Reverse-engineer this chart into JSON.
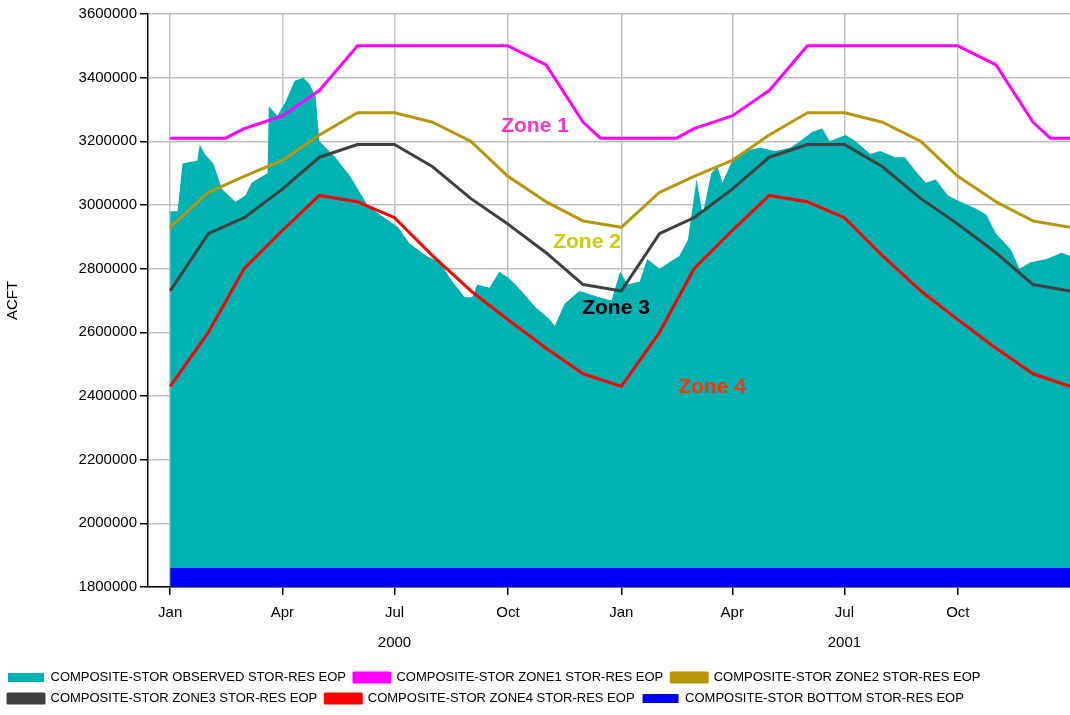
{
  "chart_data": {
    "type": "line",
    "ylabel": "ACFT",
    "xlim": [
      "1999-12-14",
      "2001-12-31"
    ],
    "xticks": [
      {
        "value": "2000-01-01",
        "label": "Jan"
      },
      {
        "value": "2000-04-01",
        "label": "Apr"
      },
      {
        "value": "2000-07-01",
        "label": "Jul\n2000"
      },
      {
        "value": "2000-10-01",
        "label": "Oct"
      },
      {
        "value": "2001-01-01",
        "label": "Jan"
      },
      {
        "value": "2001-04-01",
        "label": "Apr"
      },
      {
        "value": "2001-07-01",
        "label": "Jul\n2001"
      },
      {
        "value": "2001-10-01",
        "label": "Oct"
      }
    ],
    "ylim": [
      1800000,
      3600000
    ],
    "yticks": [
      1800000,
      2000000,
      2200000,
      2400000,
      2600000,
      2800000,
      3000000,
      3200000,
      3400000,
      3600000
    ],
    "grid": true,
    "legend": "bottom",
    "annotations": [
      "Zone 1",
      "Zone 2",
      "Zone 3",
      "Zone 4"
    ],
    "series": [
      {
        "name": "COMPOSITE-STOR OBSERVED STOR-RES EOP",
        "type": "area",
        "color": "#00b2b2",
        "x": [
          "2000-01-01",
          "2000-01-07",
          "2000-01-11",
          "2000-01-23",
          "2000-01-25",
          "2000-01-29",
          "2000-02-05",
          "2000-02-12",
          "2000-02-23",
          "2000-03-02",
          "2000-03-07",
          "2000-03-20",
          "2000-03-21",
          "2000-03-28",
          "2000-04-03",
          "2000-04-11",
          "2000-04-18",
          "2000-04-23",
          "2000-04-28",
          "2000-05-01",
          "2000-05-14",
          "2000-05-26",
          "2000-06-09",
          "2000-06-19",
          "2000-07-04",
          "2000-07-13",
          "2000-07-27",
          "2000-08-07",
          "2000-08-15",
          "2000-08-27",
          "2000-09-02",
          "2000-09-06",
          "2000-09-16",
          "2000-09-24",
          "2000-10-02",
          "2000-10-12",
          "2000-10-23",
          "2000-11-04",
          "2000-11-08",
          "2000-11-16",
          "2000-11-28",
          "2000-12-14",
          "2000-12-24",
          "2000-12-31",
          "2001-01-06",
          "2001-01-16",
          "2001-01-22",
          "2001-02-01",
          "2001-02-09",
          "2001-02-17",
          "2001-02-24",
          "2001-03-03",
          "2001-03-08",
          "2001-03-15",
          "2001-03-20",
          "2001-03-24",
          "2001-04-01",
          "2001-04-11",
          "2001-04-23",
          "2001-05-06",
          "2001-05-18",
          "2001-05-26",
          "2001-06-05",
          "2001-06-13",
          "2001-06-19",
          "2001-07-02",
          "2001-07-10",
          "2001-07-22",
          "2001-07-30",
          "2001-08-11",
          "2001-08-19",
          "2001-08-27",
          "2001-09-05",
          "2001-09-13",
          "2001-09-23",
          "2001-10-03",
          "2001-10-15",
          "2001-10-24",
          "2001-11-01",
          "2001-11-13",
          "2001-11-20",
          "2001-11-29",
          "2001-12-12",
          "2001-12-24",
          "2001-12-31"
        ],
        "values": [
          2980000,
          2980000,
          3130000,
          3140000,
          3190000,
          3160000,
          3130000,
          3050000,
          3010000,
          3030000,
          3070000,
          3100000,
          3310000,
          3280000,
          3320000,
          3390000,
          3400000,
          3380000,
          3340000,
          3200000,
          3150000,
          3090000,
          3000000,
          2970000,
          2930000,
          2880000,
          2840000,
          2820000,
          2770000,
          2710000,
          2710000,
          2750000,
          2740000,
          2790000,
          2770000,
          2730000,
          2680000,
          2640000,
          2620000,
          2690000,
          2730000,
          2710000,
          2700000,
          2790000,
          2750000,
          2760000,
          2830000,
          2800000,
          2820000,
          2840000,
          2890000,
          3080000,
          2970000,
          3100000,
          3120000,
          3070000,
          3140000,
          3170000,
          3180000,
          3170000,
          3180000,
          3200000,
          3230000,
          3240000,
          3200000,
          3220000,
          3200000,
          3160000,
          3170000,
          3150000,
          3150000,
          3110000,
          3070000,
          3080000,
          3030000,
          3010000,
          2990000,
          2970000,
          2910000,
          2860000,
          2800000,
          2820000,
          2830000,
          2850000,
          2840000
        ]
      },
      {
        "name": "COMPOSITE-STOR ZONE1 STOR-RES EOP",
        "type": "line",
        "color": "#ff00ff",
        "x": [
          "2000-01-01",
          "2000-02-15",
          "2000-03-01",
          "2000-04-01",
          "2000-05-01",
          "2000-06-01",
          "2000-07-01",
          "2000-08-01",
          "2000-09-01",
          "2000-10-01",
          "2000-11-01",
          "2000-12-01",
          "2000-12-15",
          "2001-01-01",
          "2001-02-15",
          "2001-03-01",
          "2001-04-01",
          "2001-05-01",
          "2001-06-01",
          "2001-07-01",
          "2001-08-01",
          "2001-09-01",
          "2001-10-01",
          "2001-11-01",
          "2001-12-01",
          "2001-12-15",
          "2001-12-31"
        ],
        "values": [
          3210000,
          3210000,
          3240000,
          3280000,
          3360000,
          3500000,
          3500000,
          3500000,
          3500000,
          3500000,
          3440000,
          3260000,
          3210000,
          3210000,
          3210000,
          3240000,
          3280000,
          3360000,
          3500000,
          3500000,
          3500000,
          3500000,
          3500000,
          3440000,
          3260000,
          3210000,
          3210000
        ]
      },
      {
        "name": "COMPOSITE-STOR ZONE2 STOR-RES EOP",
        "type": "line",
        "color": "#b8960c",
        "x": [
          "2000-01-01",
          "2000-02-01",
          "2000-03-01",
          "2000-04-01",
          "2000-05-01",
          "2000-06-01",
          "2000-07-01",
          "2000-08-01",
          "2000-09-01",
          "2000-10-01",
          "2000-11-01",
          "2000-12-01",
          "2001-01-01",
          "2001-02-01",
          "2001-03-01",
          "2001-04-01",
          "2001-05-01",
          "2001-06-01",
          "2001-07-01",
          "2001-08-01",
          "2001-09-01",
          "2001-10-01",
          "2001-11-01",
          "2001-12-01",
          "2001-12-31"
        ],
        "values": [
          2930000,
          3040000,
          3090000,
          3140000,
          3220000,
          3290000,
          3290000,
          3260000,
          3200000,
          3090000,
          3010000,
          2950000,
          2930000,
          3040000,
          3090000,
          3140000,
          3220000,
          3290000,
          3290000,
          3260000,
          3200000,
          3090000,
          3010000,
          2950000,
          2930000
        ]
      },
      {
        "name": "COMPOSITE-STOR ZONE3 STOR-RES EOP",
        "type": "line",
        "color": "#404040",
        "x": [
          "2000-01-01",
          "2000-02-01",
          "2000-03-01",
          "2000-04-01",
          "2000-05-01",
          "2000-06-01",
          "2000-07-01",
          "2000-08-01",
          "2000-09-01",
          "2000-10-01",
          "2000-11-01",
          "2000-12-01",
          "2001-01-01",
          "2001-02-01",
          "2001-03-01",
          "2001-04-01",
          "2001-05-01",
          "2001-06-01",
          "2001-07-01",
          "2001-08-01",
          "2001-09-01",
          "2001-10-01",
          "2001-11-01",
          "2001-12-01",
          "2001-12-31"
        ],
        "values": [
          2730000,
          2910000,
          2960000,
          3050000,
          3150000,
          3190000,
          3190000,
          3120000,
          3020000,
          2940000,
          2850000,
          2750000,
          2730000,
          2910000,
          2960000,
          3050000,
          3150000,
          3190000,
          3190000,
          3120000,
          3020000,
          2940000,
          2850000,
          2750000,
          2730000
        ]
      },
      {
        "name": "COMPOSITE-STOR ZONE4 STOR-RES EOP",
        "type": "line",
        "color": "#ff0000",
        "x": [
          "2000-01-01",
          "2000-02-01",
          "2000-03-01",
          "2000-04-01",
          "2000-05-01",
          "2000-06-01",
          "2000-07-01",
          "2000-08-01",
          "2000-09-01",
          "2000-10-01",
          "2000-11-01",
          "2000-12-01",
          "2001-01-01",
          "2001-02-01",
          "2001-03-01",
          "2001-04-01",
          "2001-05-01",
          "2001-06-01",
          "2001-07-01",
          "2001-08-01",
          "2001-09-01",
          "2001-10-01",
          "2001-11-01",
          "2001-12-01",
          "2001-12-31"
        ],
        "values": [
          2430000,
          2600000,
          2800000,
          2920000,
          3030000,
          3010000,
          2960000,
          2840000,
          2730000,
          2640000,
          2550000,
          2470000,
          2430000,
          2600000,
          2800000,
          2920000,
          3030000,
          3010000,
          2960000,
          2840000,
          2730000,
          2640000,
          2550000,
          2470000,
          2430000
        ]
      },
      {
        "name": "COMPOSITE-STOR BOTTOM STOR-RES EOP",
        "type": "area",
        "color": "#0000ff",
        "x": [
          "2000-01-01",
          "2001-12-31"
        ],
        "values": [
          1860000,
          1860000
        ]
      }
    ]
  }
}
